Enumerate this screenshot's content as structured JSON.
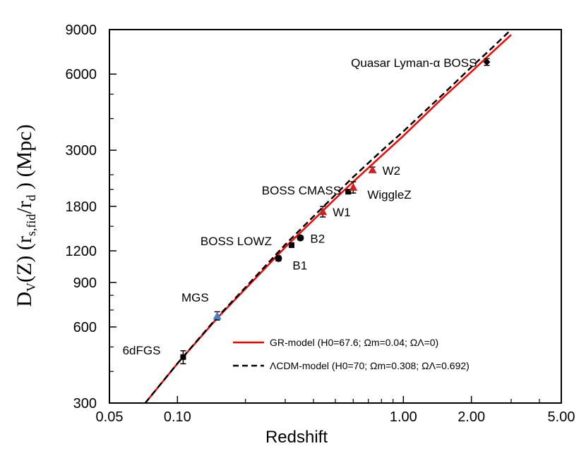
{
  "chart_data": {
    "type": "scatter",
    "title": "",
    "xlabel": "Redshift",
    "ylabel": {
      "main": "D",
      "sub_v": "V",
      "p1": "(Z) (r",
      "sub_sfid": "s,fid",
      "p2": "/r",
      "sub_d": "d",
      "p3": " ) (Mpc)"
    },
    "x_scale": "log",
    "y_scale": "log",
    "xlim": [
      0.05,
      5.0
    ],
    "ylim": [
      300,
      9000
    ],
    "x_ticks": [
      {
        "value": 0.05,
        "label": "0.05"
      },
      {
        "value": 0.1,
        "label": "0.10"
      },
      {
        "value": 1.0,
        "label": "1.00"
      },
      {
        "value": 2.0,
        "label": "2.00"
      },
      {
        "value": 5.0,
        "label": "5.00"
      }
    ],
    "x_minor_ticks": [
      0.2,
      0.3,
      0.4,
      0.5,
      0.6,
      0.7,
      0.8,
      0.9,
      3.0,
      4.0
    ],
    "y_ticks": [
      {
        "value": 300,
        "label": "300"
      },
      {
        "value": 600,
        "label": "600"
      },
      {
        "value": 900,
        "label": "900"
      },
      {
        "value": 1200,
        "label": "1200"
      },
      {
        "value": 1800,
        "label": "1800"
      },
      {
        "value": 3000,
        "label": "3000"
      },
      {
        "value": 6000,
        "label": "6000"
      },
      {
        "value": 9000,
        "label": "9000"
      }
    ],
    "y_minor_ticks": [
      400,
      500,
      700,
      800,
      1500,
      2100,
      2400,
      4000,
      5000
    ],
    "grid": false,
    "legend_position": "bottom-right",
    "series": [
      {
        "name": "GR-model (H0=67.6; Ωm=0.04; ΩΛ=0)",
        "kind": "line",
        "color": "#ff0000",
        "dash": "solid",
        "x": [
          0.072,
          0.1,
          0.15,
          0.2,
          0.3,
          0.4,
          0.5,
          0.6,
          0.8,
          1.0,
          1.5,
          2.0,
          2.5,
          3.0
        ],
        "y": [
          300,
          430,
          650,
          850,
          1240,
          1590,
          1930,
          2250,
          2850,
          3420,
          4850,
          6130,
          7390,
          8590
        ]
      },
      {
        "name": "ΛCDM-model (H0=70; Ωm=0.308; ΩΛ=0.692)",
        "kind": "line",
        "color": "#000000",
        "dash": "dashed",
        "x": [
          0.072,
          0.1,
          0.15,
          0.2,
          0.3,
          0.4,
          0.5,
          0.6,
          0.8,
          1.0,
          1.5,
          2.0,
          2.5,
          3.0
        ],
        "y": [
          300,
          430,
          655,
          860,
          1270,
          1640,
          2000,
          2350,
          2980,
          3560,
          5000,
          6400,
          7700,
          9000
        ]
      }
    ],
    "points": [
      {
        "label": "6dFGS",
        "x": 0.106,
        "y": 456,
        "err": 27,
        "marker": "square",
        "color": "#000000",
        "label_pos": "left"
      },
      {
        "label": "MGS",
        "x": 0.15,
        "y": 664,
        "err": 25,
        "marker": "triangle",
        "color": "#4a7fc1",
        "label_pos": "upper-left"
      },
      {
        "label": "B1",
        "x": 0.28,
        "y": 1120,
        "err": 25,
        "marker": "circle",
        "color": "#000000",
        "label_pos": "lower-right"
      },
      {
        "label": "BOSS LOWZ",
        "x": 0.32,
        "y": 1264,
        "err": 25,
        "marker": "square",
        "color": "#000000",
        "label_pos": "upper-left"
      },
      {
        "label": "B2",
        "x": 0.35,
        "y": 1350,
        "err": 25,
        "marker": "circle",
        "color": "#000000",
        "label_pos": "right"
      },
      {
        "label": "W1",
        "x": 0.44,
        "y": 1716,
        "err": 83,
        "marker": "triangle",
        "color": "#cc2222",
        "label_pos": "right"
      },
      {
        "label": "BOSS CMASS",
        "x": 0.57,
        "y": 2056,
        "err": 20,
        "marker": "square",
        "color": "#000000",
        "label_pos": "upper-left"
      },
      {
        "label": "WiggleZ",
        "x": 0.6,
        "y": 2141,
        "err": 110,
        "marker": "triangle",
        "color": "#cc2222",
        "label_pos": "lower-right"
      },
      {
        "label": "W2",
        "x": 0.73,
        "y": 2512,
        "err": 60,
        "marker": "triangle",
        "color": "#cc2222",
        "label_pos": "right"
      },
      {
        "label": "Quasar Lyman-α BOSS",
        "x": 2.34,
        "y": 6700,
        "err": 200,
        "marker": "diamond",
        "color": "#000000",
        "label_pos": "left"
      }
    ]
  }
}
